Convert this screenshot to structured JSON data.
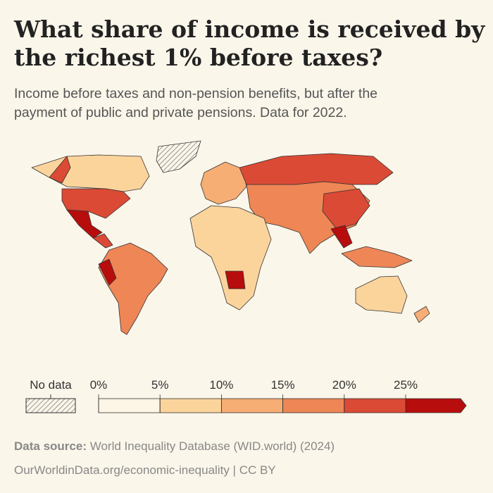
{
  "header": {
    "title_lines": [
      "What share of income is received by",
      "the richest 1% before taxes?"
    ],
    "subtitle_lines": [
      "Income before taxes and non-pension benefits, but after the",
      "payment of public and private pensions. Data for 2022."
    ]
  },
  "legend": {
    "no_data": "No data",
    "ticks": [
      {
        "value": 0,
        "label": "0%"
      },
      {
        "value": 5,
        "label": "5%"
      },
      {
        "value": 10,
        "label": "10%"
      },
      {
        "value": 15,
        "label": "15%"
      },
      {
        "value": 20,
        "label": "20%"
      },
      {
        "value": 25,
        "label": "25%"
      }
    ],
    "colors": [
      "#fdf5e6",
      "#fbd49c",
      "#f6ae74",
      "#ee8656",
      "#db4a35",
      "#b80d0d"
    ]
  },
  "footer": {
    "source_label": "Data source:",
    "source": "World Inequality Database (WID.world) (2024)",
    "url": "OurWorldinData.org/economic-inequality | CC BY"
  }
}
